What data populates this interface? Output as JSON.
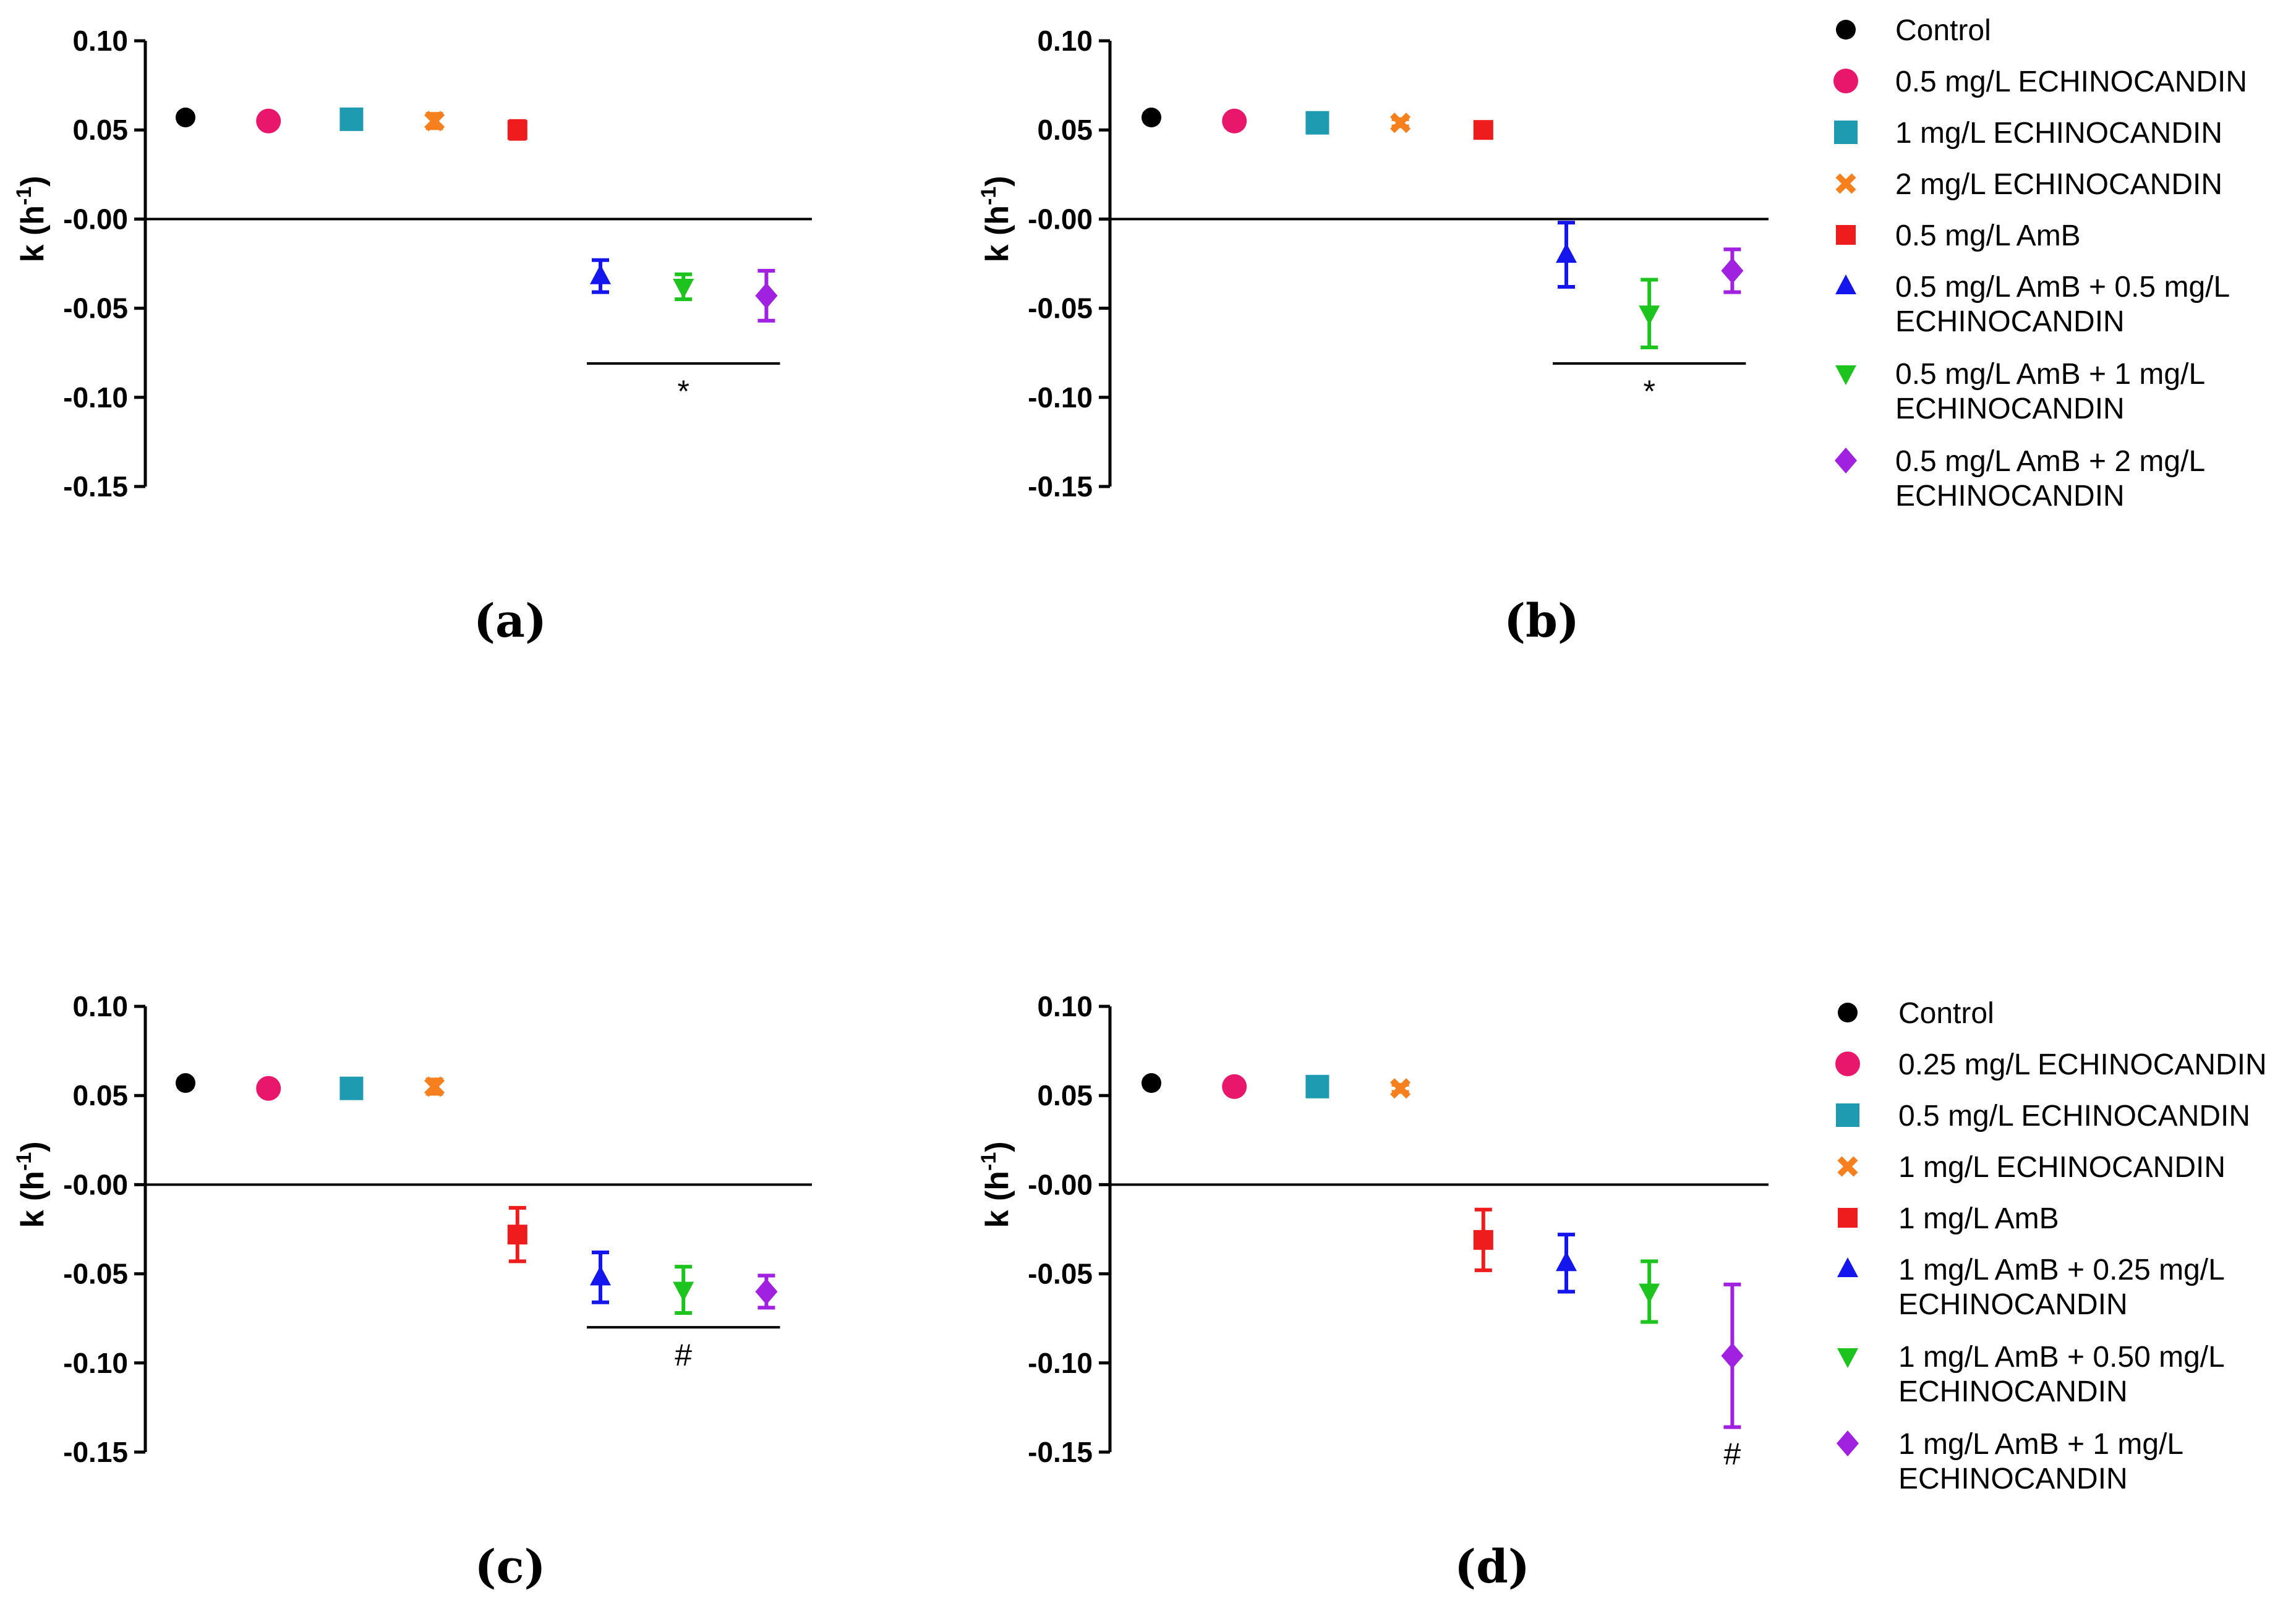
{
  "chart_data": [
    {
      "type": "scatter",
      "panel_label": "(a)",
      "xlabel": "",
      "ylabel": "k (h-1)",
      "ylabel_main": "k (h",
      "ylabel_sup": "-1",
      "ylabel_close": ")",
      "ylim": [
        -0.15,
        0.1
      ],
      "yticks": [
        "0.10",
        "0.05",
        "-0.00",
        "-0.05",
        "-0.10",
        "-0.15"
      ],
      "ytick_values": [
        0.1,
        0.05,
        0.0,
        -0.05,
        -0.1,
        -0.15
      ],
      "series": [
        {
          "name": "Control",
          "color": "#000000",
          "marker": "circle",
          "value": 0.057,
          "error": 0.002
        },
        {
          "name": "0.5 mg/L ECHINOCANDIN",
          "color": "#e8176b",
          "marker": "circle-large",
          "value": 0.055,
          "error": 0.003
        },
        {
          "name": "1 mg/L ECHINOCANDIN",
          "color": "#1e9bb0",
          "marker": "square",
          "value": 0.056,
          "error": 0.002
        },
        {
          "name": "2 mg/L ECHINOCANDIN",
          "color": "#f7801e",
          "marker": "x",
          "value": 0.055,
          "error": 0.004
        },
        {
          "name": "0.5 mg/L AmB",
          "color": "#ee1c1c",
          "marker": "square-small",
          "value": 0.05,
          "error": 0.005
        },
        {
          "name": "0.5 mg/L AmB + 0.5 mg/L ECHINOCANDIN",
          "color": "#1515ee",
          "marker": "triangle-up",
          "value": -0.032,
          "error": 0.009
        },
        {
          "name": "0.5 mg/L AmB + 1 mg/L ECHINOCANDIN",
          "color": "#1ec41e",
          "marker": "triangle-down",
          "value": -0.038,
          "error": 0.007
        },
        {
          "name": "0.5 mg/L AmB + 2 mg/L ECHINOCANDIN",
          "color": "#a021e0",
          "marker": "diamond",
          "value": -0.043,
          "error": 0.014
        }
      ],
      "significance": {
        "symbol": "*",
        "start": 6,
        "end": 8,
        "y": -0.081
      }
    },
    {
      "type": "scatter",
      "panel_label": "(b)",
      "xlabel": "",
      "ylabel": "k (h-1)",
      "ylabel_main": "k (h",
      "ylabel_sup": "-1",
      "ylabel_close": ")",
      "ylim": [
        -0.15,
        0.1
      ],
      "yticks": [
        "0.10",
        "0.05",
        "-0.00",
        "-0.05",
        "-0.10",
        "-0.15"
      ],
      "ytick_values": [
        0.1,
        0.05,
        0.0,
        -0.05,
        -0.1,
        -0.15
      ],
      "series": [
        {
          "name": "Control",
          "color": "#000000",
          "marker": "circle",
          "value": 0.057,
          "error": 0.002
        },
        {
          "name": "0.5 mg/L ECHINOCANDIN",
          "color": "#e8176b",
          "marker": "circle-large",
          "value": 0.055,
          "error": 0.002
        },
        {
          "name": "1 mg/L ECHINOCANDIN",
          "color": "#1e9bb0",
          "marker": "square",
          "value": 0.054,
          "error": 0.002
        },
        {
          "name": "2 mg/L ECHINOCANDIN",
          "color": "#f7801e",
          "marker": "x",
          "value": 0.054,
          "error": 0.002
        },
        {
          "name": "0.5 mg/L AmB",
          "color": "#ee1c1c",
          "marker": "square-small",
          "value": 0.05,
          "error": 0.004
        },
        {
          "name": "0.5 mg/L AmB + 0.5 mg/L ECHINOCANDIN",
          "color": "#1515ee",
          "marker": "triangle-up",
          "value": -0.02,
          "error": 0.018
        },
        {
          "name": "0.5 mg/L AmB + 1 mg/L ECHINOCANDIN",
          "color": "#1ec41e",
          "marker": "triangle-down",
          "value": -0.053,
          "error": 0.019
        },
        {
          "name": "0.5 mg/L AmB + 2 mg/L ECHINOCANDIN",
          "color": "#a021e0",
          "marker": "diamond",
          "value": -0.029,
          "error": 0.012
        }
      ],
      "significance": {
        "symbol": "*",
        "start": 6,
        "end": 8,
        "y": -0.081
      }
    },
    {
      "type": "scatter",
      "panel_label": "(c)",
      "xlabel": "",
      "ylabel": "k (h-1)",
      "ylabel_main": "k (h",
      "ylabel_sup": "-1",
      "ylabel_close": ")",
      "ylim": [
        -0.15,
        0.1
      ],
      "yticks": [
        "0.10",
        "0.05",
        "-0.00",
        "-0.05",
        "-0.10",
        "-0.15"
      ],
      "ytick_values": [
        0.1,
        0.05,
        0.0,
        -0.05,
        -0.1,
        -0.15
      ],
      "series": [
        {
          "name": "Control",
          "color": "#000000",
          "marker": "circle",
          "value": 0.057,
          "error": 0.002
        },
        {
          "name": "0.25 mg/L ECHINOCANDIN",
          "color": "#e8176b",
          "marker": "circle-large",
          "value": 0.054,
          "error": 0.002
        },
        {
          "name": "0.5 mg/L ECHINOCANDIN",
          "color": "#1e9bb0",
          "marker": "square",
          "value": 0.054,
          "error": 0.002
        },
        {
          "name": "1 mg/L ECHINOCANDIN",
          "color": "#f7801e",
          "marker": "x",
          "value": 0.055,
          "error": 0.004
        },
        {
          "name": "1 mg/L AmB",
          "color": "#ee1c1c",
          "marker": "square-small",
          "value": -0.028,
          "error": 0.015
        },
        {
          "name": "1 mg/L AmB + 0.25 mg/L ECHINOCANDIN",
          "color": "#1515ee",
          "marker": "triangle-up",
          "value": -0.052,
          "error": 0.014
        },
        {
          "name": "1 mg/L AmB + 0.50 mg/L ECHINOCANDIN",
          "color": "#1ec41e",
          "marker": "triangle-down",
          "value": -0.059,
          "error": 0.013
        },
        {
          "name": "1 mg/L AmB + 1 mg/L ECHINOCANDIN",
          "color": "#a021e0",
          "marker": "diamond",
          "value": -0.06,
          "error": 0.009
        }
      ],
      "significance": {
        "symbol": "#",
        "start": 6,
        "end": 8,
        "y": -0.08
      }
    },
    {
      "type": "scatter",
      "panel_label": "(d)",
      "xlabel": "",
      "ylabel": "k (h-1)",
      "ylabel_main": "k (h",
      "ylabel_sup": "-1",
      "ylabel_close": ")",
      "ylim": [
        -0.15,
        0.1
      ],
      "yticks": [
        "0.10",
        "0.05",
        "-0.00",
        "-0.05",
        "-0.10",
        "-0.15"
      ],
      "ytick_values": [
        0.1,
        0.05,
        0.0,
        -0.05,
        -0.1,
        -0.15
      ],
      "series": [
        {
          "name": "Control",
          "color": "#000000",
          "marker": "circle",
          "value": 0.057,
          "error": 0.002
        },
        {
          "name": "0.25 mg/L ECHINOCANDIN",
          "color": "#e8176b",
          "marker": "circle-large",
          "value": 0.055,
          "error": 0.002
        },
        {
          "name": "0.5 mg/L ECHINOCANDIN",
          "color": "#1e9bb0",
          "marker": "square",
          "value": 0.055,
          "error": 0.002
        },
        {
          "name": "1 mg/L ECHINOCANDIN",
          "color": "#f7801e",
          "marker": "x",
          "value": 0.054,
          "error": 0.002
        },
        {
          "name": "1 mg/L AmB",
          "color": "#ee1c1c",
          "marker": "square-small",
          "value": -0.031,
          "error": 0.017
        },
        {
          "name": "1 mg/L AmB + 0.25 mg/L ECHINOCANDIN",
          "color": "#1515ee",
          "marker": "triangle-up",
          "value": -0.044,
          "error": 0.016
        },
        {
          "name": "1 mg/L AmB + 0.50 mg/L ECHINOCANDIN",
          "color": "#1ec41e",
          "marker": "triangle-down",
          "value": -0.06,
          "error": 0.017
        },
        {
          "name": "1 mg/L AmB + 1 mg/L ECHINOCANDIN",
          "color": "#a021e0",
          "marker": "diamond",
          "value": -0.096,
          "error": 0.04
        }
      ],
      "significance": {
        "symbol": "#",
        "start": 8,
        "end": 8,
        "y": -0.15
      }
    }
  ],
  "legends": [
    {
      "items": [
        {
          "lines": [
            "Control"
          ],
          "color": "#000000",
          "marker": "circle"
        },
        {
          "lines": [
            "0.5 mg/L ECHINOCANDIN"
          ],
          "color": "#e8176b",
          "marker": "circle-large"
        },
        {
          "lines": [
            "1 mg/L ECHINOCANDIN"
          ],
          "color": "#1e9bb0",
          "marker": "square"
        },
        {
          "lines": [
            "2 mg/L ECHINOCANDIN"
          ],
          "color": "#f7801e",
          "marker": "x"
        },
        {
          "lines": [
            "0.5 mg/L AmB"
          ],
          "color": "#ee1c1c",
          "marker": "square-small"
        },
        {
          "lines": [
            "0.5 mg/L AmB + 0.5 mg/L",
            "ECHINOCANDIN"
          ],
          "color": "#1515ee",
          "marker": "triangle-up"
        },
        {
          "lines": [
            "0.5 mg/L AmB + 1 mg/L",
            "ECHINOCANDIN"
          ],
          "color": "#1ec41e",
          "marker": "triangle-down"
        },
        {
          "lines": [
            "0.5 mg/L AmB + 2 mg/L",
            "ECHINOCANDIN"
          ],
          "color": "#a021e0",
          "marker": "diamond"
        }
      ]
    },
    {
      "items": [
        {
          "lines": [
            "Control"
          ],
          "color": "#000000",
          "marker": "circle"
        },
        {
          "lines": [
            "0.25 mg/L ECHINOCANDIN"
          ],
          "color": "#e8176b",
          "marker": "circle-large"
        },
        {
          "lines": [
            "0.5 mg/L ECHINOCANDIN"
          ],
          "color": "#1e9bb0",
          "marker": "square"
        },
        {
          "lines": [
            "1 mg/L ECHINOCANDIN"
          ],
          "color": "#f7801e",
          "marker": "x"
        },
        {
          "lines": [
            "1 mg/L AmB"
          ],
          "color": "#ee1c1c",
          "marker": "square-small"
        },
        {
          "lines": [
            "1 mg/L AmB + 0.25 mg/L",
            "ECHINOCANDIN"
          ],
          "color": "#1515ee",
          "marker": "triangle-up"
        },
        {
          "lines": [
            "1 mg/L AmB + 0.50 mg/L",
            "ECHINOCANDIN"
          ],
          "color": "#1ec41e",
          "marker": "triangle-down"
        },
        {
          "lines": [
            "1 mg/L AmB + 1 mg/L",
            "ECHINOCANDIN"
          ],
          "color": "#a021e0",
          "marker": "diamond"
        }
      ]
    }
  ]
}
